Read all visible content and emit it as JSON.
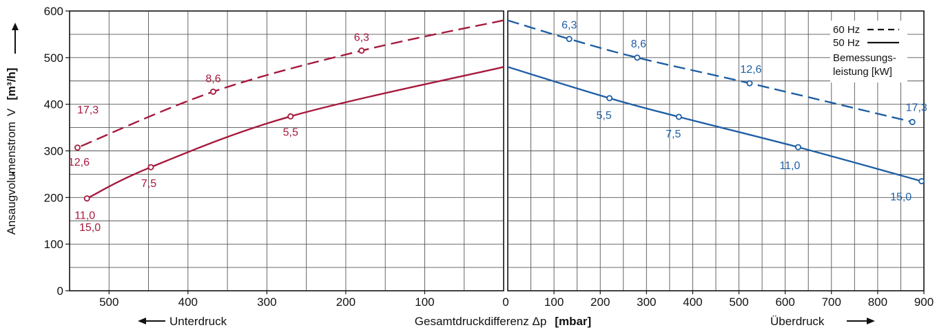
{
  "chart_data": {
    "type": "line",
    "y_axis": {
      "label": "Ansaugvolumenstrom",
      "symbol": "V",
      "unit": "[m³/h]",
      "ticks": [
        "0",
        "100",
        "200",
        "300",
        "400",
        "500",
        "600"
      ],
      "range": [
        0,
        600
      ],
      "grid": true
    },
    "x_axis": {
      "label": "Gesamtdruckdifferenz  Δp",
      "unit": "[mbar]",
      "left_label": "Unterdruck",
      "right_label": "Überdruck",
      "left_ticks": [
        "500",
        "400",
        "300",
        "200",
        "100"
      ],
      "center_tick": "0",
      "right_ticks": [
        "100",
        "200",
        "300",
        "400",
        "500",
        "600",
        "700",
        "800",
        "900"
      ],
      "left_range": [
        550,
        0
      ],
      "right_range": [
        0,
        900
      ],
      "grid": true
    },
    "legend": {
      "placement": "top-right",
      "entries": [
        {
          "label": "60 Hz",
          "style": "dashed"
        },
        {
          "label": "50 Hz",
          "style": "solid"
        }
      ],
      "note_line1": "Bemessungs-",
      "note_line2": "leistung  [kW]"
    },
    "colors": {
      "vacuum": "#a6193c",
      "pressure": "#1f5fa5",
      "grid": "#555555"
    },
    "series": [
      {
        "name": "60 Hz",
        "side": "vacuum",
        "style": "dashed",
        "x": [
          0,
          180,
          368,
          540
        ],
        "y": [
          580,
          515,
          427,
          307
        ],
        "markers": [
          {
            "x": 180,
            "y": 515,
            "label": "6,3"
          },
          {
            "x": 368,
            "y": 427,
            "label": "8,6"
          },
          {
            "x": 540,
            "y": 307,
            "label": "12,6"
          }
        ]
      },
      {
        "name": "50 Hz",
        "side": "vacuum",
        "style": "solid",
        "x": [
          0,
          270,
          447,
          528
        ],
        "y": [
          480,
          374,
          265,
          198
        ],
        "markers": [
          {
            "x": 270,
            "y": 374,
            "label": "5,5"
          },
          {
            "x": 447,
            "y": 265,
            "label": "7,5"
          },
          {
            "x": 528,
            "y": 198,
            "label": "11,0"
          }
        ]
      },
      {
        "name": "60 Hz",
        "side": "pressure",
        "style": "dashed",
        "x": [
          0,
          133,
          280,
          523,
          875
        ],
        "y": [
          580,
          540,
          500,
          445,
          362
        ],
        "markers": [
          {
            "x": 133,
            "y": 540,
            "label": "6,3"
          },
          {
            "x": 280,
            "y": 500,
            "label": "8,6"
          },
          {
            "x": 523,
            "y": 445,
            "label": "12,6"
          },
          {
            "x": 875,
            "y": 362,
            "label": "17,3"
          }
        ]
      },
      {
        "name": "50 Hz",
        "side": "pressure",
        "style": "solid",
        "x": [
          0,
          220,
          370,
          628,
          895
        ],
        "y": [
          480,
          413,
          373,
          308,
          235
        ],
        "markers": [
          {
            "x": 220,
            "y": 413,
            "label": "5,5"
          },
          {
            "x": 370,
            "y": 373,
            "label": "7,5"
          },
          {
            "x": 628,
            "y": 308,
            "label": "11,0"
          },
          {
            "x": 895,
            "y": 235,
            "label": "15,0"
          }
        ]
      }
    ],
    "extra_labels": {
      "vacuum_60hz_end": "17,3",
      "vacuum_50hz_end": "15,0"
    }
  }
}
